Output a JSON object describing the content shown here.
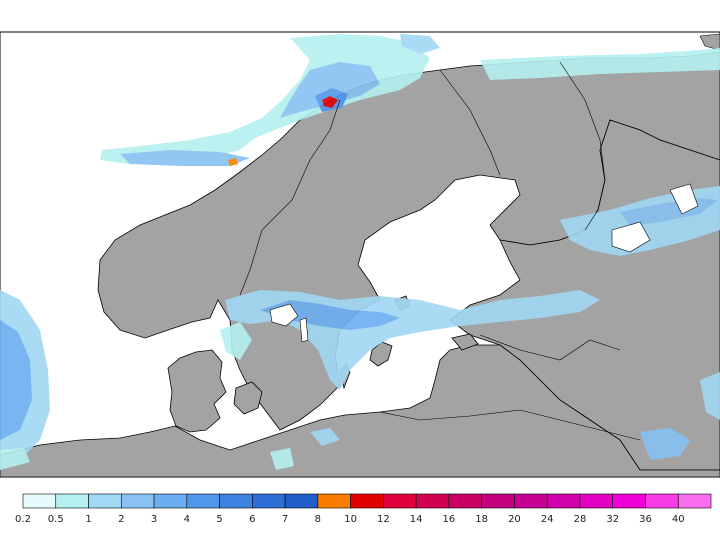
{
  "map": {
    "region": "Scandinavia and Baltic Sea",
    "land_color": "#a3a3a3",
    "sea_color": "#ffffff",
    "coast_color": "#000000"
  },
  "legend": {
    "labels": [
      "0.2",
      "0.5",
      "1",
      "2",
      "3",
      "4",
      "5",
      "6",
      "7",
      "8",
      "10",
      "12",
      "14",
      "16",
      "18",
      "20",
      "24",
      "28",
      "32",
      "36",
      "40"
    ],
    "colors": [
      "#e6fbfb",
      "#b4f0f0",
      "#a0d8f5",
      "#88c2f2",
      "#6aaef0",
      "#5096ea",
      "#3e82e2",
      "#2d6fd6",
      "#215ec8",
      "#fa7d00",
      "#e10000",
      "#e1003c",
      "#d20050",
      "#c80064",
      "#c3007d",
      "#c80096",
      "#d200aa",
      "#e100c3",
      "#f000d7",
      "#fa3ce6",
      "#fa6ef0"
    ]
  }
}
